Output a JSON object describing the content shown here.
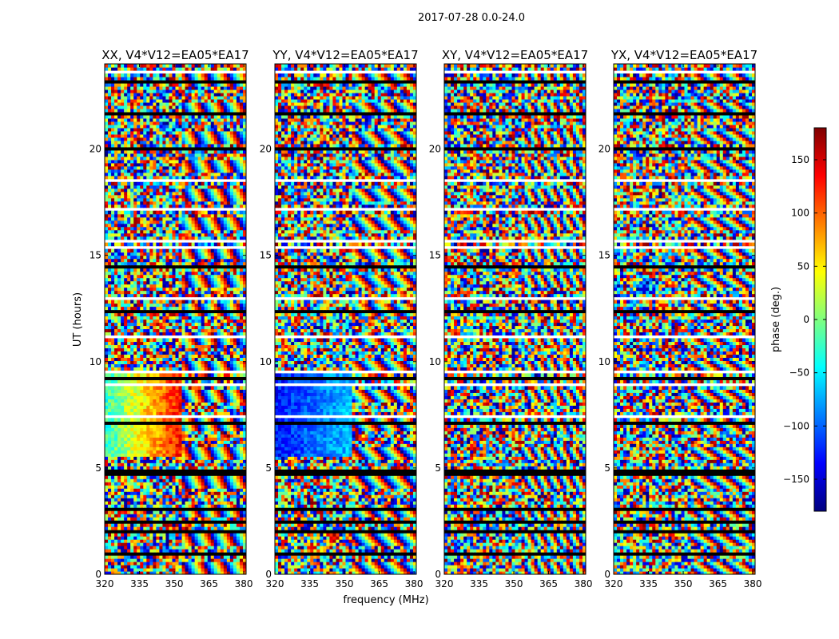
{
  "figure": {
    "suptitle": "2017-07-28 0.0-24.0",
    "colors": {
      "jet": [
        "#00007f",
        "#0000ff",
        "#007fff",
        "#00ffff",
        "#7fff7f",
        "#ffff00",
        "#ff7f00",
        "#ff0000",
        "#7f0000"
      ],
      "flag_white": "#ffffff",
      "flag_black": "#000000"
    }
  },
  "chart_data": [
    {
      "type": "heatmap",
      "title": "XX, V4*V12=EA05*EA17",
      "xlabel": "",
      "ylabel": "UT (hours)",
      "xlim": [
        320,
        381
      ],
      "ylim": [
        0,
        24
      ],
      "xticks": [
        "320",
        "335",
        "350",
        "365",
        "380"
      ],
      "yticks": [
        "0",
        "5",
        "10",
        "15",
        "20"
      ],
      "values": "phase (deg.) per time-frequency cell, range -180 to 180; strong coherent gradient (−30 → 150) over 5.5–9.5 h at 320–353 MHz, noise elsewhere"
    },
    {
      "type": "heatmap",
      "title": "YY, V4*V12=EA05*EA17",
      "xlabel": "frequency (MHz)",
      "ylabel": "",
      "xlim": [
        320,
        381
      ],
      "ylim": [
        0,
        24
      ],
      "xticks": [
        "320",
        "335",
        "350",
        "365",
        "380"
      ],
      "yticks": [
        "0",
        "5",
        "10",
        "15",
        "20"
      ],
      "values": "phase (deg.) per time-frequency cell, range -180 to 180; coherent blue region (−130 → −60) over 5.5–9.5 h at 320–353 MHz, noise elsewhere"
    },
    {
      "type": "heatmap",
      "title": "XY, V4*V12=EA05*EA17",
      "xlabel": "",
      "ylabel": "",
      "xlim": [
        320,
        381
      ],
      "ylim": [
        0,
        24
      ],
      "xticks": [
        "320",
        "335",
        "350",
        "365",
        "380"
      ],
      "yticks": [
        "0",
        "5",
        "10",
        "15",
        "20"
      ],
      "values": "phase (deg.) per time-frequency cell, range -180 to 180; mostly noise-like"
    },
    {
      "type": "heatmap",
      "title": "YX, V4*V12=EA05*EA17",
      "xlabel": "",
      "ylabel": "",
      "xlim": [
        320,
        381
      ],
      "ylim": [
        0,
        24
      ],
      "xticks": [
        "320",
        "335",
        "350",
        "365",
        "380"
      ],
      "yticks": [
        "0",
        "5",
        "10",
        "15",
        "20"
      ],
      "values": "phase (deg.) per time-frequency cell, range -180 to 180; mostly noise-like"
    }
  ],
  "colorbar": {
    "label": "phase (deg.)",
    "range": [
      -180,
      180
    ],
    "ticks": [
      {
        "value": 150,
        "label": "150"
      },
      {
        "value": 100,
        "label": "100"
      },
      {
        "value": 50,
        "label": "50"
      },
      {
        "value": 0,
        "label": "0"
      },
      {
        "value": -50,
        "label": "−50"
      },
      {
        "value": -100,
        "label": "−100"
      },
      {
        "value": -150,
        "label": "−150"
      }
    ]
  }
}
